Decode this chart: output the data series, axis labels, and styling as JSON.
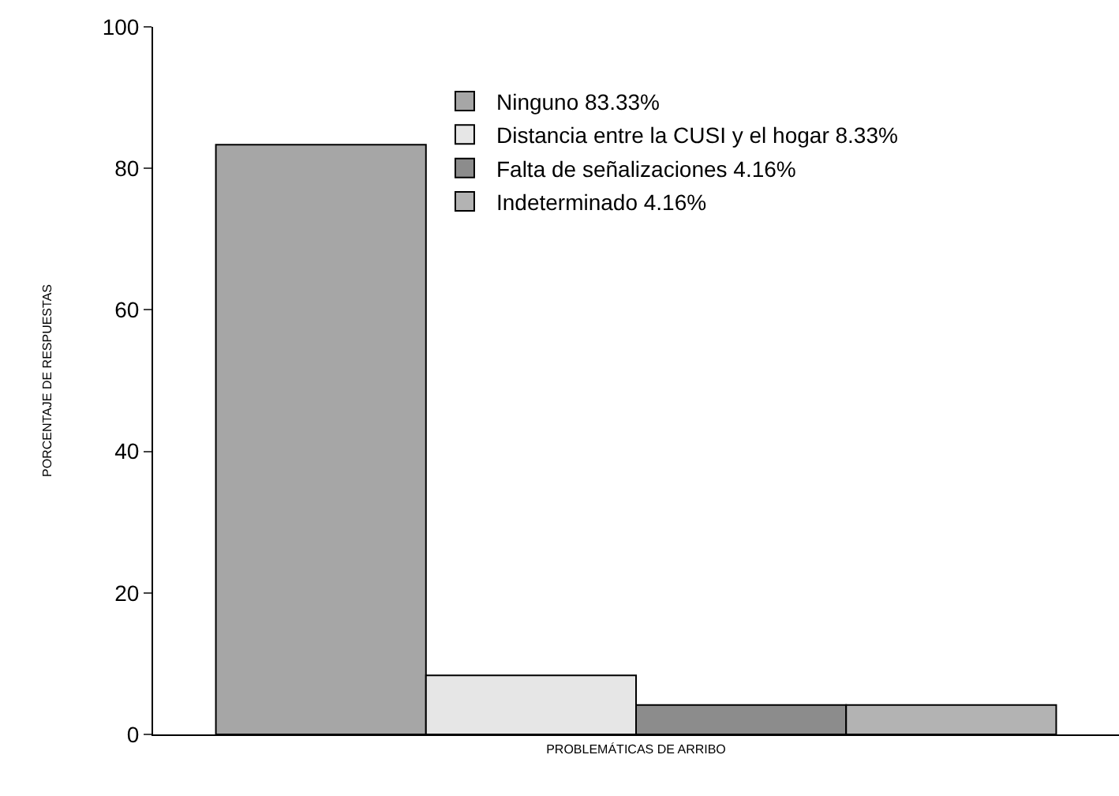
{
  "chart_data": {
    "type": "bar",
    "xlabel": "PROBLEMÁTICAS DE ARRIBO",
    "ylabel": "PORCENTAJE DE RESPUESTAS",
    "categories": [
      null
    ],
    "series": [
      {
        "name": "Ninguno 83.33%",
        "color": "#a6a6a6",
        "values": [
          83.33
        ]
      },
      {
        "name": "Distancia entre la CUSI y el hogar 8.33%",
        "color": "#e6e6e6",
        "values": [
          8.33
        ]
      },
      {
        "name": "Falta de señalizaciones 4.16%",
        "color": "#8c8c8c",
        "values": [
          4.16
        ]
      },
      {
        "name": "Indeterminado 4.16%",
        "color": "#b3b3b3",
        "values": [
          4.16
        ]
      }
    ],
    "ylim": [
      0,
      100
    ],
    "yticks": [
      0,
      20,
      40,
      60,
      80,
      100
    ],
    "legend": "top",
    "tick_labels": "y"
  }
}
